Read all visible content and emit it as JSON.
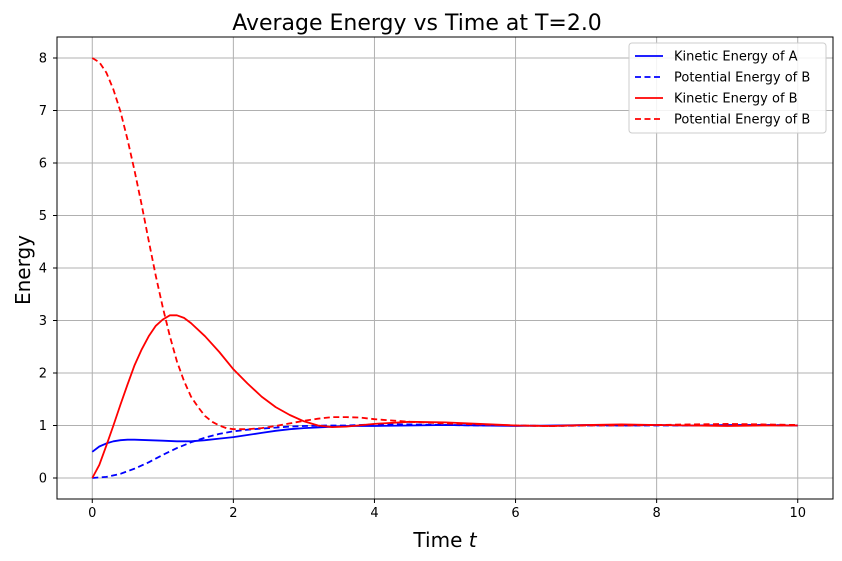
{
  "chart_data": {
    "type": "line",
    "title": "Average Energy vs Time at T=2.0",
    "xlabel": "Time",
    "xlabel_var": "t",
    "ylabel": "Energy",
    "xlim": [
      -0.5,
      10.5
    ],
    "ylim": [
      -0.4,
      8.4
    ],
    "xticks": [
      0,
      2,
      4,
      6,
      8,
      10
    ],
    "yticks": [
      0,
      1,
      2,
      3,
      4,
      5,
      6,
      7,
      8
    ],
    "grid": true,
    "legend_position": "top-right",
    "series": [
      {
        "name": "Kinetic Energy of A",
        "color": "#0000ff",
        "style": "solid",
        "x": [
          0,
          0.1,
          0.2,
          0.3,
          0.4,
          0.5,
          0.6,
          0.8,
          1.0,
          1.2,
          1.4,
          1.6,
          1.8,
          2.0,
          2.2,
          2.4,
          2.6,
          2.8,
          3.0,
          3.3,
          3.6,
          4.0,
          4.5,
          5.0,
          5.5,
          6.0,
          6.5,
          7.0,
          7.5,
          8.0,
          8.5,
          9.0,
          9.5,
          10.0
        ],
        "y": [
          0.5,
          0.6,
          0.66,
          0.7,
          0.72,
          0.73,
          0.73,
          0.72,
          0.71,
          0.7,
          0.7,
          0.72,
          0.75,
          0.78,
          0.82,
          0.86,
          0.9,
          0.93,
          0.95,
          0.97,
          0.99,
          0.99,
          1.0,
          1.01,
          1.0,
          0.99,
          1.0,
          1.01,
          1.0,
          1.01,
          1.0,
          1.01,
          1.01,
          1.0
        ]
      },
      {
        "name": "Potential Energy of B",
        "color": "#0000ff",
        "style": "dashed",
        "x": [
          0,
          0.2,
          0.4,
          0.6,
          0.8,
          1.0,
          1.2,
          1.4,
          1.6,
          1.8,
          2.0,
          2.2,
          2.4,
          2.6,
          2.8,
          3.0,
          3.3,
          3.6,
          4.0,
          4.5,
          5.0,
          5.5,
          6.0,
          6.5,
          7.0,
          7.5,
          8.0,
          8.5,
          9.0,
          9.5,
          10.0
        ],
        "y": [
          0.0,
          0.02,
          0.08,
          0.18,
          0.3,
          0.44,
          0.57,
          0.68,
          0.77,
          0.84,
          0.89,
          0.92,
          0.94,
          0.96,
          0.98,
          0.99,
          1.0,
          1.0,
          1.02,
          1.02,
          1.01,
          1.0,
          1.0,
          0.99,
          1.0,
          1.0,
          1.0,
          1.0,
          1.0,
          1.01,
          1.0
        ]
      },
      {
        "name": "Kinetic Energy of B",
        "color": "#ff0000",
        "style": "solid",
        "x": [
          0,
          0.1,
          0.2,
          0.3,
          0.4,
          0.5,
          0.6,
          0.7,
          0.8,
          0.9,
          1.0,
          1.1,
          1.2,
          1.3,
          1.4,
          1.6,
          1.8,
          2.0,
          2.2,
          2.4,
          2.6,
          2.8,
          3.0,
          3.2,
          3.4,
          3.6,
          4.0,
          4.5,
          5.0,
          5.5,
          6.0,
          6.5,
          7.0,
          7.5,
          8.0,
          8.5,
          9.0,
          9.5,
          10.0
        ],
        "y": [
          0.0,
          0.25,
          0.62,
          1.0,
          1.4,
          1.78,
          2.15,
          2.45,
          2.7,
          2.9,
          3.02,
          3.1,
          3.1,
          3.05,
          2.95,
          2.7,
          2.4,
          2.07,
          1.8,
          1.55,
          1.35,
          1.2,
          1.08,
          1.0,
          0.97,
          0.98,
          1.03,
          1.07,
          1.06,
          1.03,
          1.0,
          0.99,
          1.01,
          1.02,
          1.01,
          1.0,
          0.99,
          1.0,
          1.0
        ]
      },
      {
        "name": "Potential Energy of B",
        "color": "#ff0000",
        "style": "dashed",
        "x": [
          0,
          0.1,
          0.2,
          0.3,
          0.4,
          0.5,
          0.6,
          0.7,
          0.8,
          0.9,
          1.0,
          1.1,
          1.2,
          1.3,
          1.4,
          1.5,
          1.6,
          1.7,
          1.8,
          1.9,
          2.0,
          2.2,
          2.4,
          2.6,
          2.8,
          3.0,
          3.2,
          3.4,
          3.6,
          3.8,
          4.0,
          4.5,
          5.0,
          5.5,
          6.0,
          6.5,
          7.0,
          7.5,
          8.0,
          8.5,
          9.0,
          9.5,
          10.0
        ],
        "y": [
          8.0,
          7.92,
          7.72,
          7.4,
          6.98,
          6.45,
          5.85,
          5.2,
          4.52,
          3.85,
          3.25,
          2.7,
          2.22,
          1.85,
          1.55,
          1.35,
          1.18,
          1.07,
          1.0,
          0.95,
          0.93,
          0.93,
          0.95,
          0.99,
          1.04,
          1.09,
          1.13,
          1.16,
          1.16,
          1.15,
          1.12,
          1.07,
          1.04,
          1.02,
          1.0,
          0.99,
          1.0,
          1.0,
          1.01,
          1.02,
          1.03,
          1.02,
          1.01
        ]
      }
    ]
  }
}
